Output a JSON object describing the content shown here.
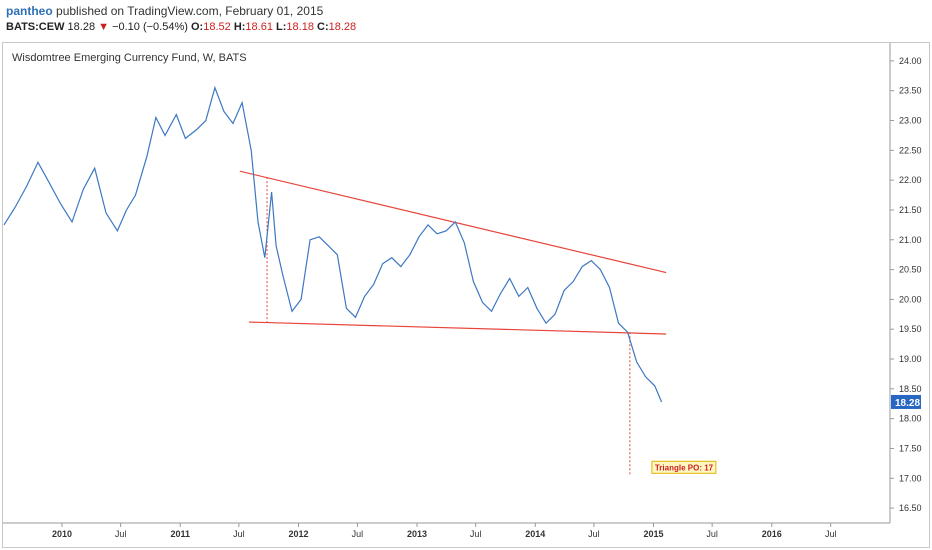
{
  "header": {
    "user": "pantheo",
    "published_text": "published on TradingView.com, February 01, 2015",
    "symbol": "BATS:CEW",
    "last": "18.28",
    "arrow": "▼",
    "change": "−0.10 (−0.54%)",
    "open_label": "O:",
    "open": "18.52",
    "high_label": "H:",
    "high": "18.61",
    "low_label": "L:",
    "low": "18.18",
    "close_label": "C:",
    "close": "18.28"
  },
  "colors": {
    "line": "#3c78c3",
    "trend": "#e8443a",
    "price_tag": "#2866c4",
    "negative": "#cc1f1f"
  },
  "chart_data": {
    "type": "line",
    "title": "Wisdomtree Emerging Currency Fund, W, BATS",
    "x_ticks": [
      "2010",
      "Jul",
      "2011",
      "Jul",
      "2012",
      "Jul",
      "2013",
      "Jul",
      "2014",
      "Jul",
      "2015",
      "Jul",
      "2016",
      "Jul"
    ],
    "year_ticks": [
      "2010",
      "2011",
      "2012",
      "2013",
      "2014",
      "2015",
      "2016"
    ],
    "y_ticks": [
      "16.50",
      "17.00",
      "17.50",
      "18.00",
      "18.50",
      "19.00",
      "19.50",
      "20.00",
      "20.50",
      "21.00",
      "21.50",
      "22.00",
      "22.50",
      "23.00",
      "23.50",
      "24.00"
    ],
    "ylim": [
      16.25,
      24.3
    ],
    "xlim": [
      "2009-07-06",
      "2016-12-31"
    ],
    "last_price_label": "18.28",
    "annotation": "Triangle PO: 17",
    "grid": false,
    "series": [
      {
        "values": [
          [
            "2009-07-06",
            21.25
          ],
          [
            "2009-08-10",
            21.55
          ],
          [
            "2009-09-14",
            21.9
          ],
          [
            "2009-10-19",
            22.3
          ],
          [
            "2009-11-23",
            21.95
          ],
          [
            "2009-12-28",
            21.6
          ],
          [
            "2010-02-01",
            21.3
          ],
          [
            "2010-03-08",
            21.85
          ],
          [
            "2010-04-12",
            22.2
          ],
          [
            "2010-05-17",
            21.45
          ],
          [
            "2010-06-21",
            21.15
          ],
          [
            "2010-07-19",
            21.5
          ],
          [
            "2010-08-16",
            21.75
          ],
          [
            "2010-09-20",
            22.4
          ],
          [
            "2010-10-18",
            23.05
          ],
          [
            "2010-11-15",
            22.75
          ],
          [
            "2010-12-20",
            23.1
          ],
          [
            "2011-01-17",
            22.7
          ],
          [
            "2011-02-21",
            22.85
          ],
          [
            "2011-03-21",
            23.0
          ],
          [
            "2011-04-18",
            23.55
          ],
          [
            "2011-05-16",
            23.15
          ],
          [
            "2011-06-13",
            22.95
          ],
          [
            "2011-07-11",
            23.3
          ],
          [
            "2011-08-08",
            22.5
          ],
          [
            "2011-08-29",
            21.3
          ],
          [
            "2011-09-19",
            20.7
          ],
          [
            "2011-10-10",
            21.8
          ],
          [
            "2011-10-24",
            20.9
          ],
          [
            "2011-11-14",
            20.4
          ],
          [
            "2011-12-12",
            19.8
          ],
          [
            "2012-01-09",
            20.0
          ],
          [
            "2012-02-06",
            21.0
          ],
          [
            "2012-03-05",
            21.05
          ],
          [
            "2012-04-02",
            20.9
          ],
          [
            "2012-04-30",
            20.75
          ],
          [
            "2012-05-28",
            19.85
          ],
          [
            "2012-06-25",
            19.7
          ],
          [
            "2012-07-23",
            20.05
          ],
          [
            "2012-08-20",
            20.25
          ],
          [
            "2012-09-17",
            20.6
          ],
          [
            "2012-10-15",
            20.7
          ],
          [
            "2012-11-12",
            20.55
          ],
          [
            "2012-12-10",
            20.75
          ],
          [
            "2013-01-07",
            21.05
          ],
          [
            "2013-02-04",
            21.25
          ],
          [
            "2013-03-04",
            21.1
          ],
          [
            "2013-04-01",
            21.15
          ],
          [
            "2013-04-29",
            21.3
          ],
          [
            "2013-05-27",
            20.95
          ],
          [
            "2013-06-24",
            20.3
          ],
          [
            "2013-07-22",
            19.95
          ],
          [
            "2013-08-19",
            19.8
          ],
          [
            "2013-09-16",
            20.1
          ],
          [
            "2013-10-14",
            20.35
          ],
          [
            "2013-11-11",
            20.05
          ],
          [
            "2013-12-09",
            20.2
          ],
          [
            "2014-01-06",
            19.85
          ],
          [
            "2014-02-03",
            19.6
          ],
          [
            "2014-03-03",
            19.75
          ],
          [
            "2014-03-31",
            20.15
          ],
          [
            "2014-04-28",
            20.3
          ],
          [
            "2014-05-26",
            20.55
          ],
          [
            "2014-06-23",
            20.65
          ],
          [
            "2014-07-21",
            20.5
          ],
          [
            "2014-08-18",
            20.2
          ],
          [
            "2014-09-15",
            19.6
          ],
          [
            "2014-10-13",
            19.45
          ],
          [
            "2014-11-10",
            18.95
          ],
          [
            "2014-12-08",
            18.7
          ],
          [
            "2015-01-05",
            18.55
          ],
          [
            "2015-01-26",
            18.28
          ]
        ]
      }
    ],
    "trendlines": [
      {
        "from": [
          "2011-07-04",
          22.15
        ],
        "to": [
          "2015-02-09",
          20.45
        ]
      },
      {
        "from": [
          "2011-08-01",
          19.62
        ],
        "to": [
          "2015-02-09",
          19.42
        ]
      }
    ],
    "vertical_markers": [
      {
        "x": "2011-09-26",
        "from": 22.05,
        "to": 19.62
      },
      {
        "x": "2014-10-20",
        "from": 19.45,
        "to": 17.05
      }
    ]
  }
}
